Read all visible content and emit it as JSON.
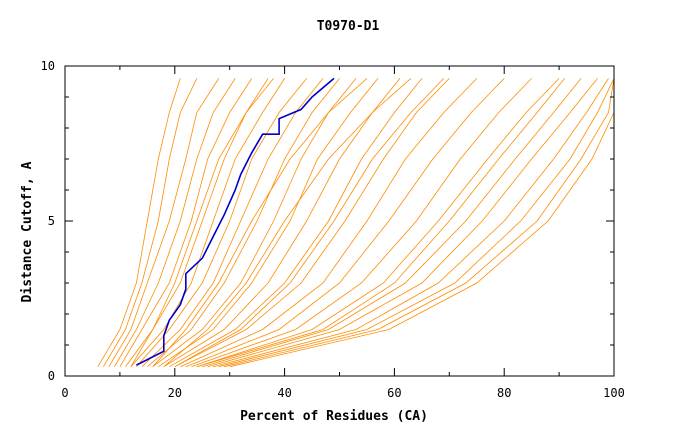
{
  "chart_data": {
    "type": "line",
    "title": "T0970-D1",
    "xlabel": "Percent of Residues (CA)",
    "ylabel": "Distance Cutoff, A",
    "xlim": [
      0,
      100
    ],
    "ylim": [
      0,
      10
    ],
    "x_ticks": [
      "0",
      "20",
      "40",
      "60",
      "80",
      "100"
    ],
    "y_ticks": [
      "0",
      "5",
      "10"
    ],
    "grid": false,
    "colors": {
      "background_series": "#ff8c00",
      "highlight_series": "#0000cc"
    },
    "highlight_series": {
      "x": [
        13,
        18,
        18,
        19,
        21,
        22,
        22,
        25,
        27,
        29,
        31,
        32,
        34,
        36,
        39,
        39,
        43,
        45,
        49
      ],
      "y": [
        0.35,
        0.8,
        1.3,
        1.8,
        2.3,
        2.8,
        3.3,
        3.8,
        4.5,
        5.2,
        6.0,
        6.5,
        7.2,
        7.8,
        7.8,
        8.3,
        8.6,
        9.0,
        9.6
      ]
    },
    "background_series": [
      {
        "x": [
          6,
          10,
          13,
          15,
          17,
          19,
          21
        ],
        "y": [
          0.3,
          1.5,
          3,
          5,
          7,
          8.5,
          9.6
        ]
      },
      {
        "x": [
          7,
          11,
          14,
          17,
          19,
          21,
          24
        ],
        "y": [
          0.3,
          1.5,
          3,
          5,
          7,
          8.5,
          9.6
        ]
      },
      {
        "x": [
          8,
          12,
          15,
          19,
          22,
          24,
          28
        ],
        "y": [
          0.3,
          1.5,
          3,
          5,
          7,
          8.5,
          9.6
        ]
      },
      {
        "x": [
          9,
          13,
          17,
          21,
          24,
          27,
          31
        ],
        "y": [
          0.3,
          1.5,
          3,
          5,
          7,
          8.5,
          9.6
        ]
      },
      {
        "x": [
          10,
          14,
          19,
          23,
          26,
          30,
          34
        ],
        "y": [
          0.3,
          1.5,
          3,
          5,
          7,
          8.5,
          9.6
        ]
      },
      {
        "x": [
          11,
          16,
          21,
          25,
          29,
          33,
          37
        ],
        "y": [
          0.3,
          1.5,
          3,
          5,
          7,
          8.5,
          9.6
        ]
      },
      {
        "x": [
          12,
          18,
          23,
          27,
          31,
          36,
          40
        ],
        "y": [
          0.3,
          1.5,
          3,
          5,
          7,
          8.5,
          9.6
        ]
      },
      {
        "x": [
          13,
          19,
          25,
          30,
          34,
          39,
          44
        ],
        "y": [
          0.3,
          1.5,
          3,
          5,
          7,
          8.5,
          9.6
        ]
      },
      {
        "x": [
          14,
          21,
          27,
          32,
          37,
          42,
          47
        ],
        "y": [
          0.3,
          1.5,
          3,
          5,
          7,
          8.5,
          9.6
        ]
      },
      {
        "x": [
          15,
          23,
          29,
          35,
          40,
          45,
          50
        ],
        "y": [
          0.3,
          1.5,
          3,
          5,
          7,
          8.5,
          9.6
        ]
      },
      {
        "x": [
          16,
          25,
          32,
          38,
          43,
          48,
          53
        ],
        "y": [
          0.3,
          1.5,
          3,
          5,
          7,
          8.5,
          9.6
        ]
      },
      {
        "x": [
          17,
          27,
          34,
          41,
          46,
          52,
          57
        ],
        "y": [
          0.3,
          1.5,
          3,
          5,
          7,
          8.5,
          9.6
        ]
      },
      {
        "x": [
          18,
          29,
          37,
          44,
          50,
          56,
          61
        ],
        "y": [
          0.3,
          1.5,
          3,
          5,
          7,
          8.5,
          9.6
        ]
      },
      {
        "x": [
          19,
          31,
          40,
          48,
          54,
          60,
          65
        ],
        "y": [
          0.3,
          1.5,
          3,
          5,
          7,
          8.5,
          9.6
        ]
      },
      {
        "x": [
          20,
          33,
          43,
          51,
          58,
          64,
          70
        ],
        "y": [
          0.3,
          1.5,
          3,
          5,
          7,
          8.5,
          9.6
        ]
      },
      {
        "x": [
          21,
          36,
          47,
          55,
          62,
          69,
          75
        ],
        "y": [
          0.3,
          1.5,
          3,
          5,
          7,
          8.5,
          9.6
        ]
      },
      {
        "x": [
          22,
          39,
          50,
          59,
          67,
          74,
          80
        ],
        "y": [
          0.3,
          1.5,
          3,
          5,
          7,
          8.5,
          9.6
        ]
      },
      {
        "x": [
          23,
          42,
          54,
          64,
          72,
          79,
          85
        ],
        "y": [
          0.3,
          1.5,
          3,
          5,
          7,
          8.5,
          9.6
        ]
      },
      {
        "x": [
          24,
          45,
          58,
          68,
          77,
          84,
          90
        ],
        "y": [
          0.3,
          1.5,
          3,
          5,
          7,
          8.5,
          9.6
        ]
      },
      {
        "x": [
          25,
          48,
          62,
          73,
          82,
          89,
          94
        ],
        "y": [
          0.3,
          1.5,
          3,
          5,
          7,
          8.5,
          9.6
        ]
      },
      {
        "x": [
          26,
          50,
          65,
          76,
          85,
          92,
          97
        ],
        "y": [
          0.3,
          1.5,
          3,
          5,
          7,
          8.5,
          9.6
        ]
      },
      {
        "x": [
          27,
          53,
          68,
          80,
          89,
          95,
          99
        ],
        "y": [
          0.3,
          1.5,
          3,
          5,
          7,
          8.5,
          9.6
        ]
      },
      {
        "x": [
          28,
          55,
          71,
          83,
          92,
          97,
          100
        ],
        "y": [
          0.3,
          1.5,
          3,
          5,
          7,
          8.5,
          9.6
        ]
      },
      {
        "x": [
          29,
          57,
          73,
          86,
          94,
          99,
          100
        ],
        "y": [
          0.3,
          1.5,
          3,
          5,
          7,
          8.5,
          9.6
        ]
      },
      {
        "x": [
          30,
          59,
          75,
          88,
          96,
          100,
          100
        ],
        "y": [
          0.3,
          1.5,
          3,
          5,
          7,
          8.5,
          9.6
        ]
      },
      {
        "x": [
          18,
          26,
          33,
          40,
          48,
          56,
          63
        ],
        "y": [
          0.3,
          1.5,
          3,
          5,
          7,
          8.5,
          9.6
        ]
      },
      {
        "x": [
          16,
          22,
          28,
          34,
          41,
          48,
          55
        ],
        "y": [
          0.3,
          1.5,
          3,
          5,
          7,
          8.5,
          9.6
        ]
      },
      {
        "x": [
          20,
          32,
          41,
          49,
          56,
          63,
          69
        ],
        "y": [
          0.3,
          1.5,
          3,
          5,
          7,
          8.5,
          9.6
        ]
      },
      {
        "x": [
          12,
          16,
          20,
          24,
          28,
          33,
          38
        ],
        "y": [
          0.3,
          1.5,
          3,
          5,
          7,
          8.5,
          9.6
        ]
      },
      {
        "x": [
          24,
          47,
          60,
          70,
          79,
          86,
          91
        ],
        "y": [
          0.3,
          1.5,
          3,
          5,
          7,
          8.5,
          9.6
        ]
      }
    ]
  }
}
